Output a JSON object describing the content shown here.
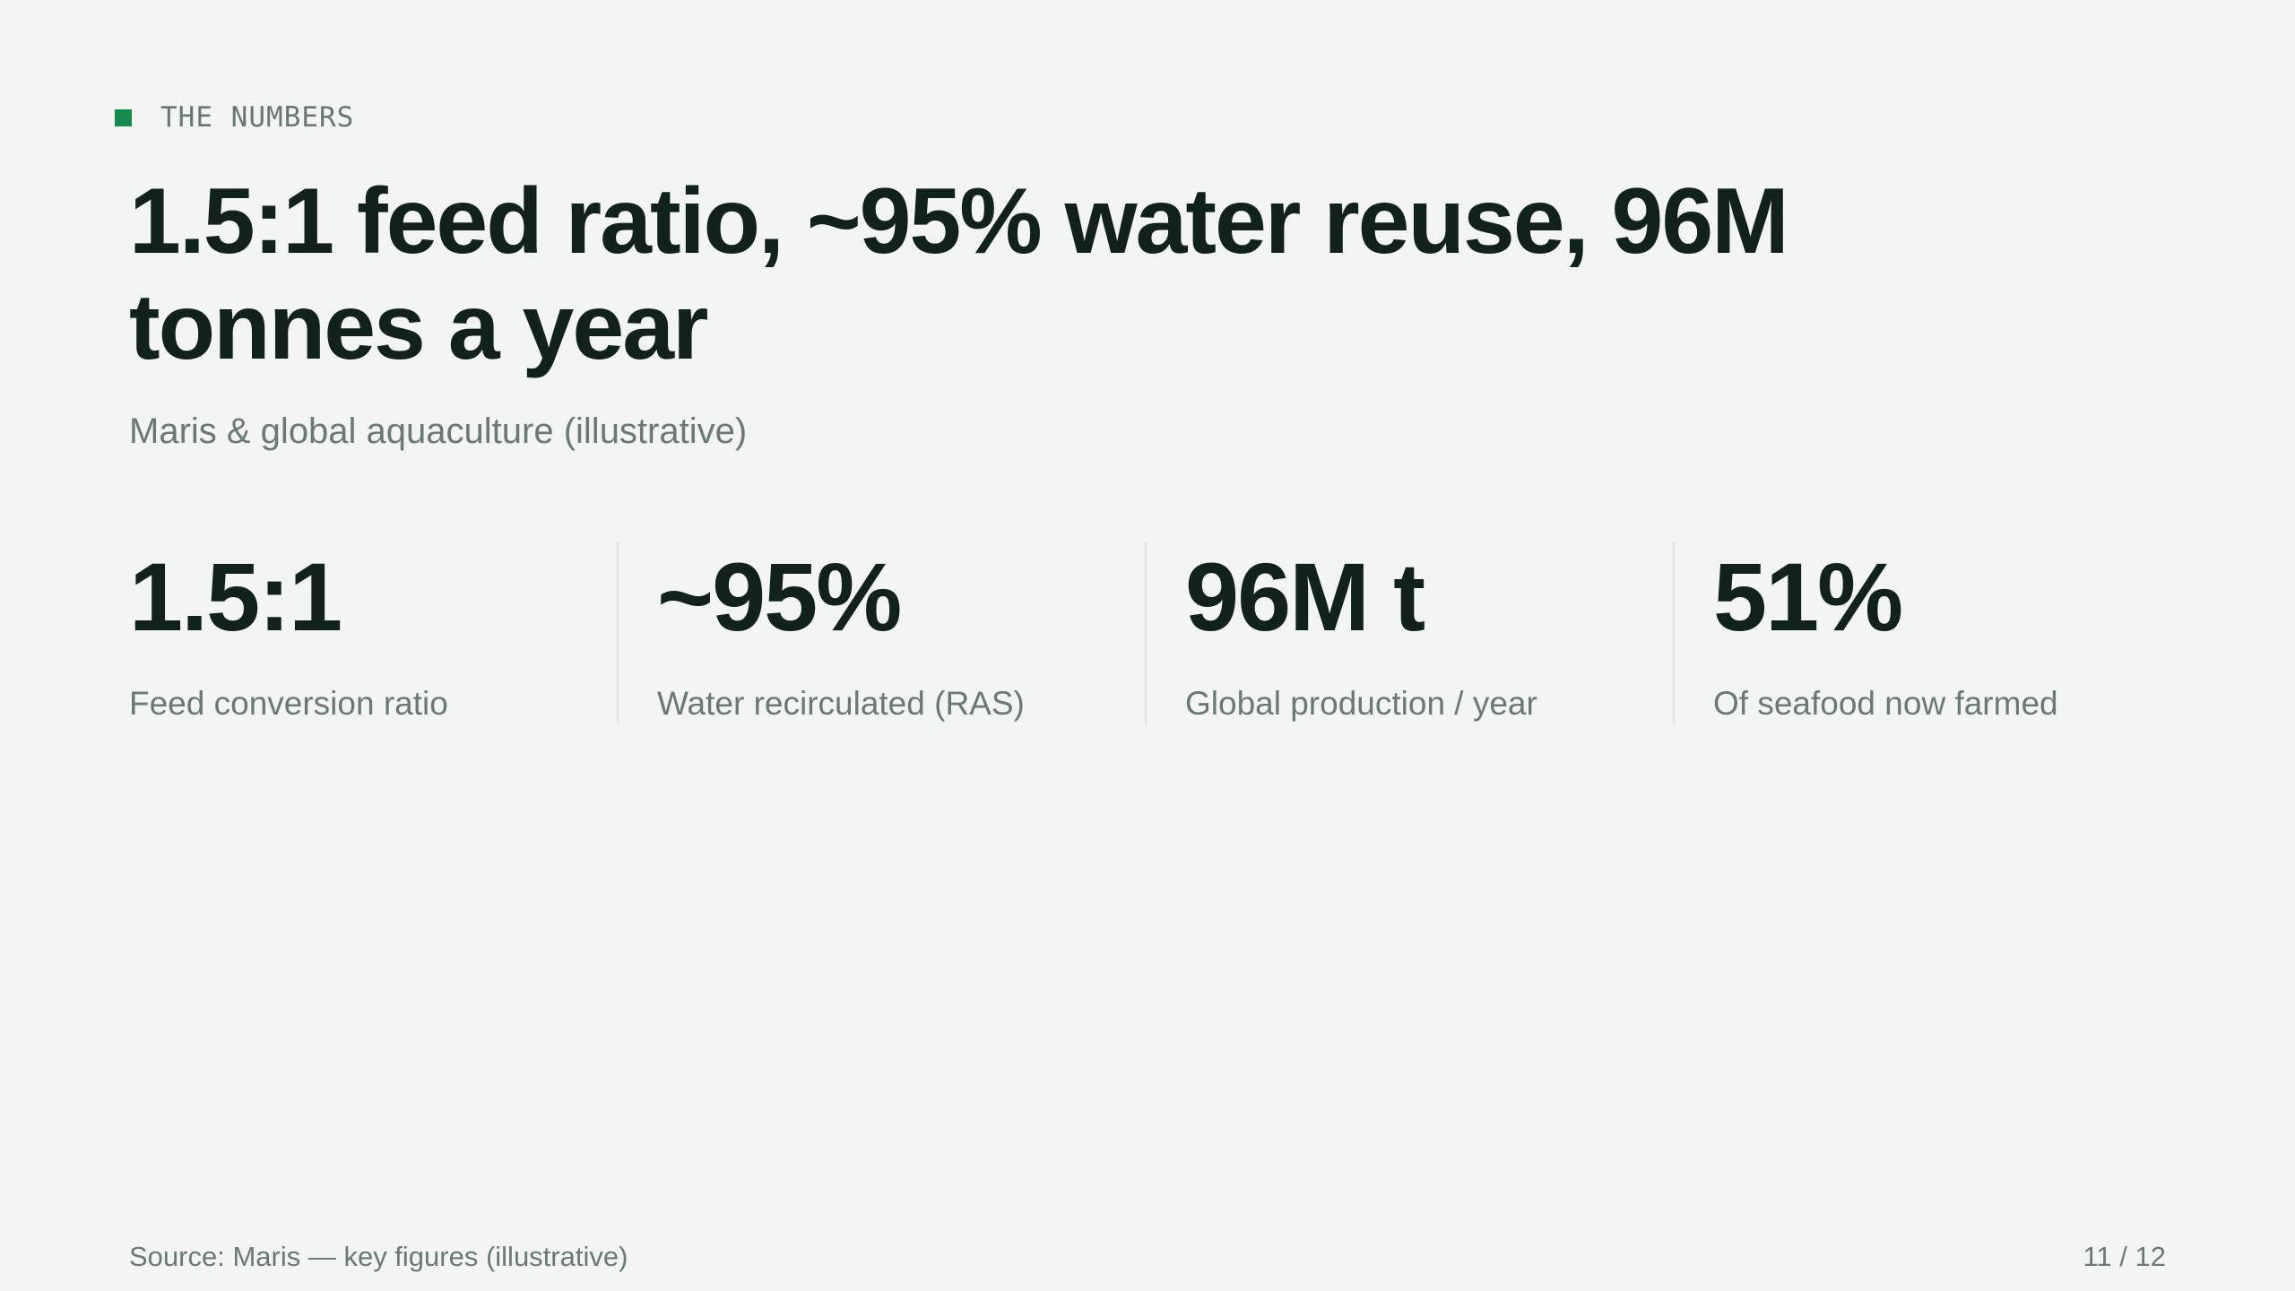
{
  "slide": {
    "kicker": "THE NUMBERS",
    "title": "1.5:1 feed ratio, ~95% water reuse, 96M tonnes a year",
    "subtitle": "Maris & global aquaculture (illustrative)",
    "accent_color": "#168a4d",
    "stats": [
      {
        "value": "1.5:1",
        "label": "Feed conversion ratio"
      },
      {
        "value": "~95%",
        "label": "Water recirculated (RAS)"
      },
      {
        "value": "96M t",
        "label": "Global production / year"
      },
      {
        "value": "51%",
        "label": "Of seafood now farmed"
      }
    ],
    "source": "Source: Maris — key figures (illustrative)",
    "page_number": "11 / 12"
  }
}
